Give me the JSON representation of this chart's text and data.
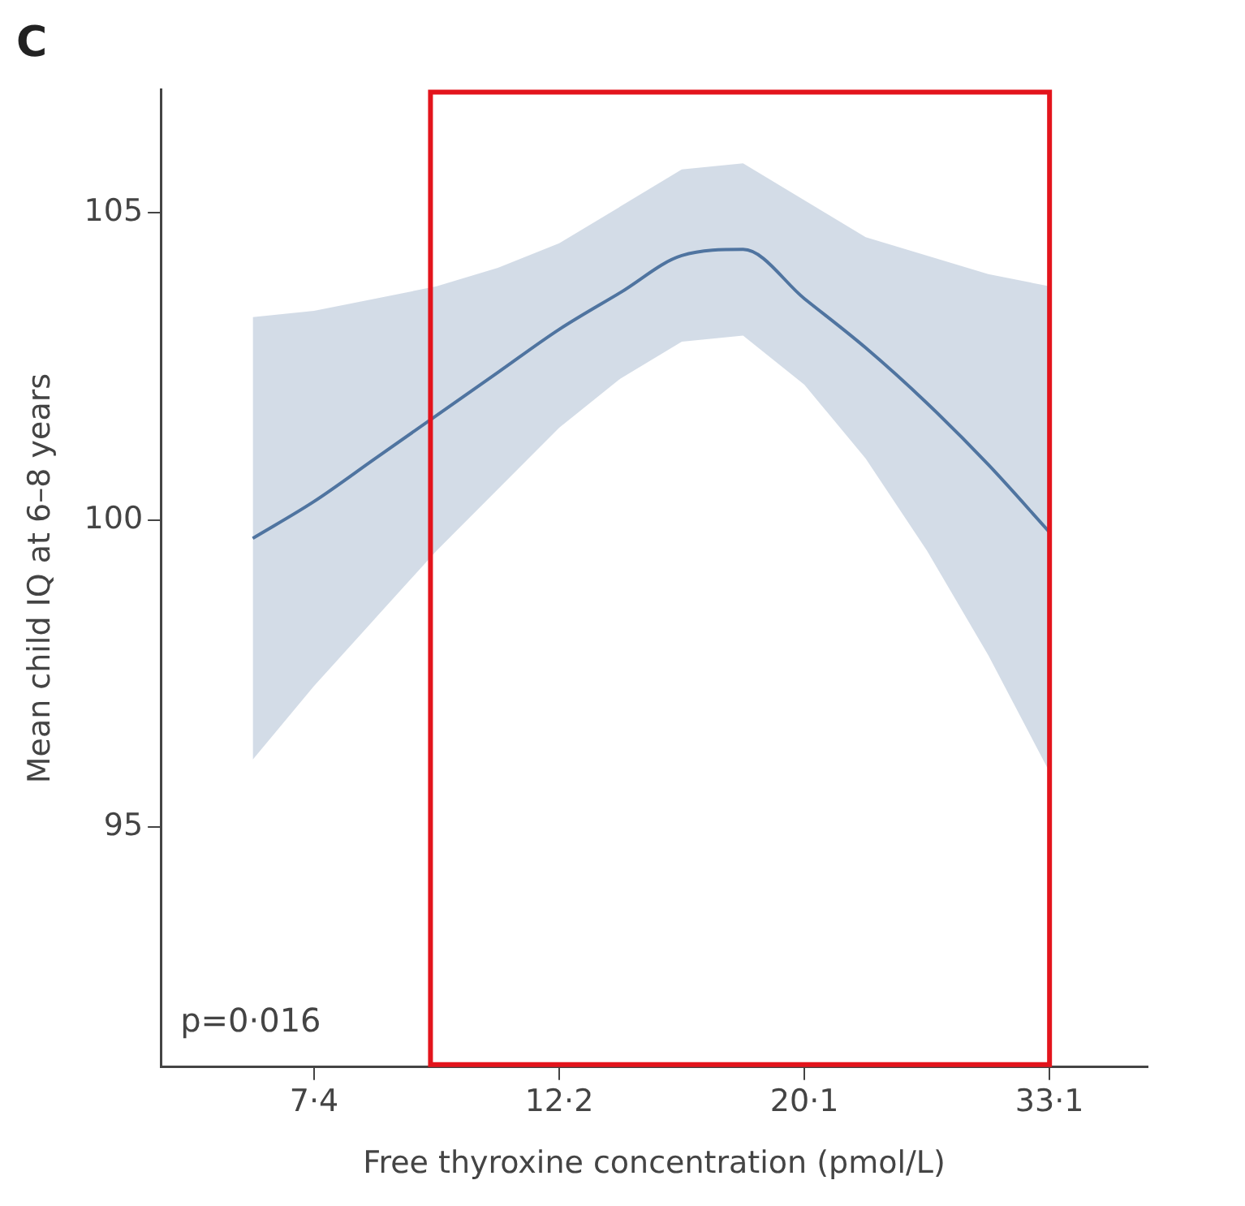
{
  "chart_data": {
    "type": "line",
    "title": "C",
    "xlabel": "Free thyroxine concentration (pmol/L)",
    "ylabel": "Mean child IQ at 6–8 years",
    "categories": [
      null,
      "7·4",
      null,
      null,
      null,
      "12·2",
      null,
      null,
      null,
      "20·1",
      null,
      null,
      null,
      "33·1"
    ],
    "ylim": [
      91.1,
      107
    ],
    "yticks": [
      95,
      100,
      105
    ],
    "grid": false,
    "legend": false,
    "marker": "none",
    "line_style": "solid",
    "series": [
      {
        "color": "#4f74a0",
        "values": [
          99.7,
          100.3,
          101.0,
          101.7,
          102.4,
          103.1,
          103.7,
          104.3,
          104.4,
          103.6,
          102.8,
          101.9,
          100.9,
          99.8
        ],
        "lower": [
          96.1,
          97.3,
          98.4,
          99.5,
          100.5,
          101.5,
          102.3,
          102.9,
          103.0,
          102.2,
          101.0,
          99.5,
          97.8,
          95.9
        ],
        "upper": [
          103.3,
          103.4,
          103.6,
          103.8,
          104.1,
          104.5,
          105.1,
          105.7,
          105.8,
          105.2,
          104.6,
          104.3,
          104.0,
          103.8
        ]
      }
    ],
    "annotations": [
      "p=0·016"
    ]
  }
}
